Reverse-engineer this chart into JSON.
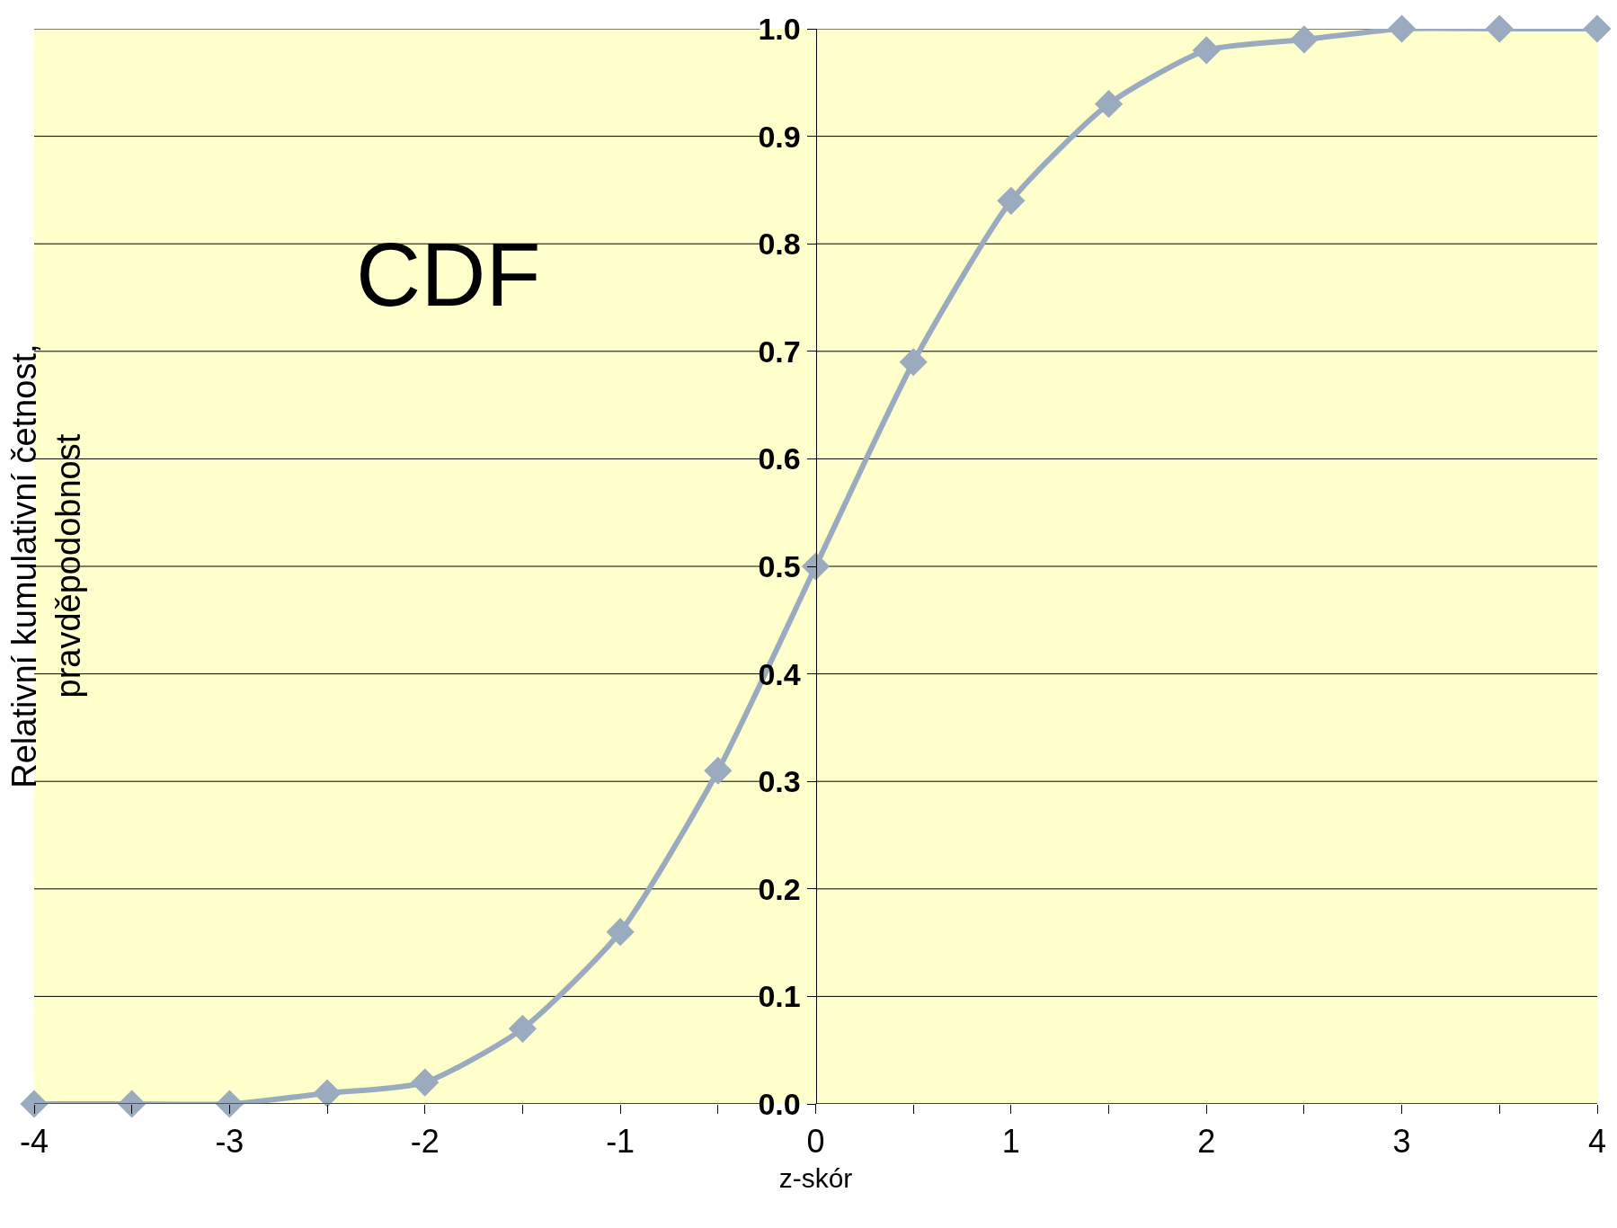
{
  "chart_data": {
    "type": "line",
    "xlabel": "z-skór",
    "ylabel": "Relativní kumulativní četnost,\npravděpodobnost",
    "annotations": [
      "CDF"
    ],
    "x": [
      -4,
      -3.5,
      -3,
      -2.5,
      -2,
      -1.5,
      -1,
      -0.5,
      0,
      0.5,
      1,
      1.5,
      2,
      2.5,
      3,
      3.5,
      4
    ],
    "series": [
      {
        "color": "#9aabbf",
        "values": [
          0.0,
          0.0,
          0.0,
          0.01,
          0.02,
          0.07,
          0.16,
          0.31,
          0.5,
          0.69,
          0.84,
          0.93,
          0.98,
          0.99,
          1.0,
          1.0,
          1.0
        ]
      }
    ],
    "xlim": [
      -4,
      4
    ],
    "xticks": [
      -4,
      {
        "value": -3.5,
        "label": null
      },
      -3,
      {
        "value": -2.5,
        "label": null
      },
      -2,
      {
        "value": -1.5,
        "label": null
      },
      -1,
      {
        "value": -0.5,
        "label": null
      },
      0,
      {
        "value": 0.5,
        "label": null
      },
      1,
      {
        "value": 1.5,
        "label": null
      },
      2,
      {
        "value": 2.5,
        "label": null
      },
      3,
      {
        "value": 3.5,
        "label": null
      },
      4
    ],
    "ylim": [
      0,
      1
    ],
    "yticks": [
      {
        "value": 0,
        "label": "0.0"
      },
      0.1,
      0.2,
      0.3,
      0.4,
      0.5,
      0.6,
      0.7,
      0.8,
      0.9,
      {
        "value": 1,
        "label": "1.0"
      }
    ],
    "grid": "y",
    "marker": "diamond",
    "line_style": "solid"
  }
}
